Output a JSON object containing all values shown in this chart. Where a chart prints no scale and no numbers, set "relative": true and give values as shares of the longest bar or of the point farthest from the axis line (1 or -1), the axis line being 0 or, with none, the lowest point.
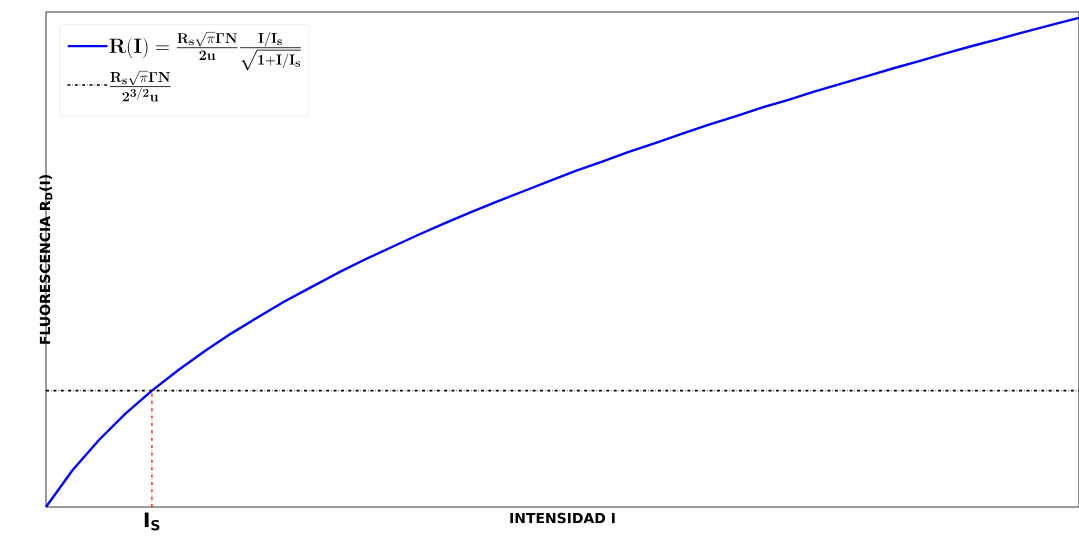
{
  "chart_data": {
    "type": "line",
    "relative": true,
    "xlabel": "INTENSIDAD I",
    "ylabel": "FLUORESCENCIA R$_{D}$(I)",
    "categories": [
      null,
      null,
      null,
      null,
      null,
      null,
      null,
      null,
      null,
      null,
      null,
      null,
      null,
      null,
      null,
      null,
      null,
      null,
      null,
      null,
      null,
      null,
      null,
      null,
      null,
      null,
      null,
      null,
      null,
      null,
      null,
      null,
      null,
      null,
      null,
      null,
      null,
      null,
      null,
      null
    ],
    "series": [
      {
        "name": "\\mathbf{R(I) = \\frac{R_s\\sqrt{\\pi}\\Gamma N}{2u}\\frac{I/I_s}{\\sqrt{1+I/I_s}}}",
        "color": "#0000ff",
        "values": [
          0.0,
          0.075,
          0.137,
          0.191,
          0.238,
          0.28,
          0.319,
          0.355,
          0.388,
          0.42,
          0.449,
          0.478,
          0.505,
          0.53,
          0.555,
          0.579,
          0.602,
          0.624,
          0.645,
          0.666,
          0.687,
          0.706,
          0.726,
          0.744,
          0.763,
          0.781,
          0.798,
          0.816,
          0.832,
          0.849,
          0.865,
          0.881,
          0.897,
          0.912,
          0.928,
          0.943,
          0.957,
          0.972,
          0.986,
          1.0
        ]
      }
    ],
    "ref_lines": [
      {
        "axis": "y",
        "value": 0.238,
        "label": "\\mathbf{\\frac{R_s\\sqrt{\\pi}\\Gamma N}{2^{3/2}u}}",
        "color": "#000000",
        "line_style": "dashdot"
      }
    ],
    "annotations": [
      {
        "text": "I$_{S}$",
        "y": 0.238
      }
    ],
    "legend": "top left"
  }
}
